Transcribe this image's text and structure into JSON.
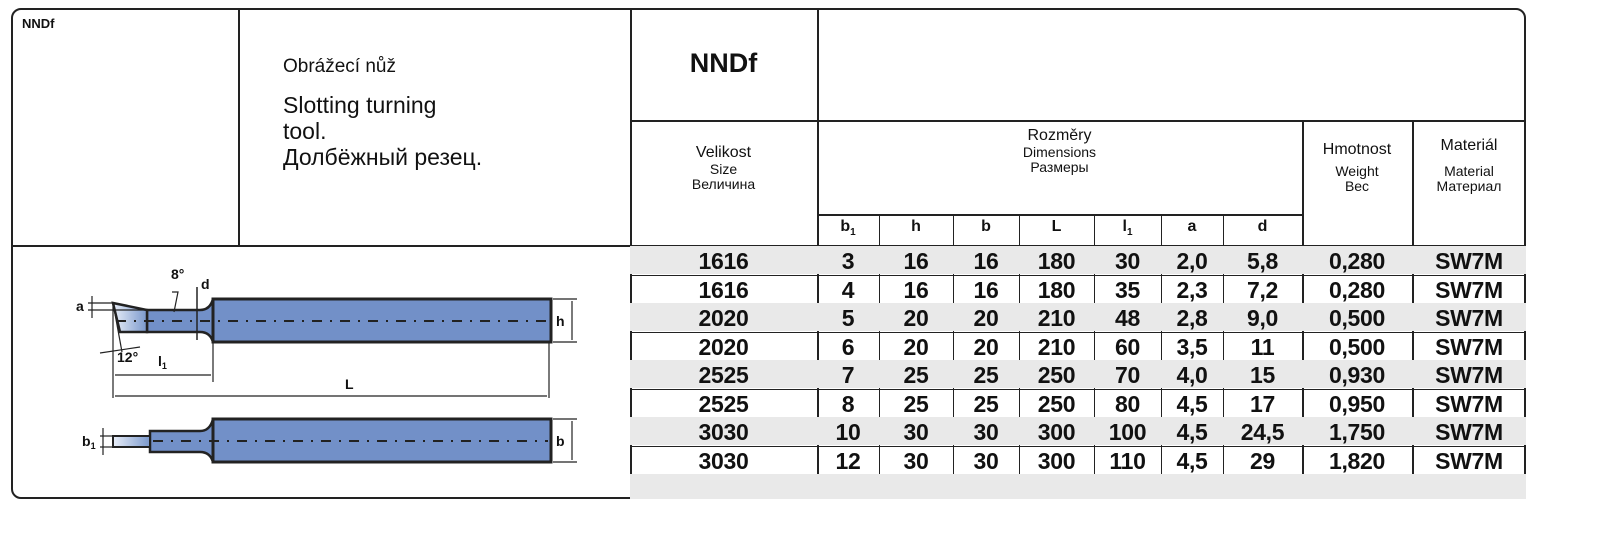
{
  "code_label": "NNDf",
  "description": {
    "cz": "Obrážecí nůž",
    "en_line1": "Slotting turning",
    "en_line2": "tool.",
    "ru": "Долбёжный резец."
  },
  "product_code": "NNDf",
  "headers": {
    "size": {
      "cz": "Velikost",
      "en": "Size",
      "ru": "Величина"
    },
    "dimensions": {
      "cz": "Rozměry",
      "en": "Dimensions",
      "ru": "Размеры"
    },
    "weight": {
      "cz": "Hmotnost",
      "en": "Weight",
      "ru": "Вес"
    },
    "material": {
      "cz": "Materiál",
      "en": "Material",
      "ru": "Материал"
    },
    "dim_cols": [
      "b",
      "h",
      "b",
      "L",
      "l",
      "a",
      "d"
    ],
    "dim_subs": [
      "1",
      "",
      "",
      "",
      "1",
      "",
      ""
    ]
  },
  "rows": [
    [
      "1616",
      "3",
      "16",
      "16",
      "180",
      "30",
      "2,0",
      "5,8",
      "0,280",
      "SW7M"
    ],
    [
      "1616",
      "4",
      "16",
      "16",
      "180",
      "35",
      "2,3",
      "7,2",
      "0,280",
      "SW7M"
    ],
    [
      "2020",
      "5",
      "20",
      "20",
      "210",
      "48",
      "2,8",
      "9,0",
      "0,500",
      "SW7M"
    ],
    [
      "2020",
      "6",
      "20",
      "20",
      "210",
      "60",
      "3,5",
      "11",
      "0,500",
      "SW7M"
    ],
    [
      "2525",
      "7",
      "25",
      "25",
      "250",
      "70",
      "4,0",
      "15",
      "0,930",
      "SW7M"
    ],
    [
      "2525",
      "8",
      "25",
      "25",
      "250",
      "80",
      "4,5",
      "17",
      "0,950",
      "SW7M"
    ],
    [
      "3030",
      "10",
      "30",
      "30",
      "300",
      "100",
      "4,5",
      "24,5",
      "1,750",
      "SW7M"
    ],
    [
      "3030",
      "12",
      "30",
      "30",
      "300",
      "110",
      "4,5",
      "29",
      "1,820",
      "SW7M"
    ]
  ],
  "drawing_labels": {
    "angle_top": "8°",
    "angle_bottom": "12°",
    "a": "a",
    "d": "d",
    "h": "h",
    "l1": "l",
    "l1_sub": "1",
    "L": "L",
    "b": "b",
    "b1": "b",
    "b1_sub": "1"
  },
  "colors": {
    "tool_body": "#7290c8",
    "row_stripe": "#e9e9e9",
    "border": "#222222"
  }
}
